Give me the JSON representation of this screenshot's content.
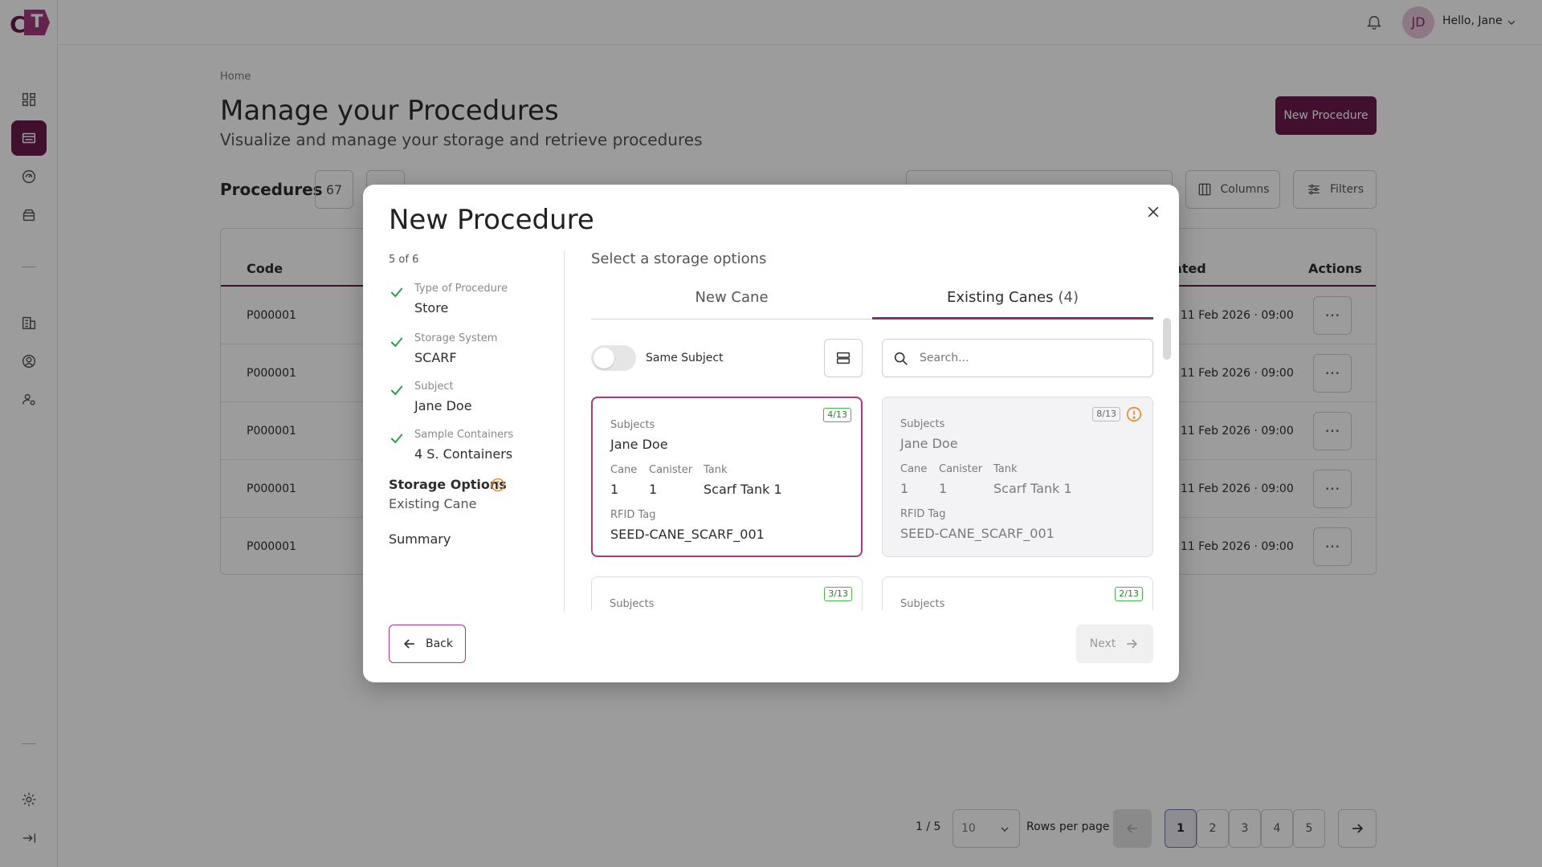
{
  "app": {
    "logo_letters": {
      "c": "C",
      "t": "T"
    }
  },
  "header": {
    "avatar_initials": "JD",
    "greeting": "Hello, Jane"
  },
  "page": {
    "breadcrumb": "Home",
    "title": "Manage your Procedures",
    "subtitle": "Visualize and manage your storage and retrieve procedures",
    "new_button": "New Procedure",
    "procedures_label": "Procedures",
    "procedures_count": "67",
    "columns_button": "Columns",
    "filters_button": "Filters"
  },
  "table": {
    "headers": {
      "code": "Code",
      "created": "ated",
      "actions": "Actions"
    },
    "rows": [
      {
        "code": "P000001",
        "date": ", 11 Feb 2026 · 09:00",
        "action": "···"
      },
      {
        "code": "P000001",
        "date": ", 11 Feb 2026 · 09:00",
        "action": "···"
      },
      {
        "code": "P000001",
        "date": ", 11 Feb 2026 · 09:00",
        "action": "···"
      },
      {
        "code": "P000001",
        "date": ", 11 Feb 2026 · 09:00",
        "action": "···"
      },
      {
        "code": "P000001",
        "date": ", 11 Feb 2026 · 09:00",
        "action": "···"
      }
    ]
  },
  "pagination": {
    "page_indicator": "1 / 5",
    "rows_value": "10",
    "rows_label": "Rows per page",
    "pages": [
      "1",
      "2",
      "3",
      "4",
      "5"
    ],
    "current_page": "1"
  },
  "modal": {
    "title": "New Procedure",
    "step_counter": "5 of 6",
    "steps": [
      {
        "label": "Type of Procedure",
        "value": "Store"
      },
      {
        "label": "Storage System",
        "value": "SCARF"
      },
      {
        "label": "Subject",
        "value": "Jane Doe"
      },
      {
        "label": "Sample Containers",
        "value": "4 S. Containers"
      }
    ],
    "current_step": {
      "label": "Storage Options",
      "value": "Existing Cane"
    },
    "summary_step": "Summary",
    "section_title": "Select a storage options",
    "tabs": {
      "new_cane": "New Cane",
      "existing_canes": "Existing Canes",
      "existing_count": "(4)"
    },
    "toggle_label": "Same Subject",
    "search_placeholder": "Search...",
    "field_labels": {
      "subjects": "Subjects",
      "cane": "Cane",
      "canister": "Canister",
      "tank": "Tank",
      "rfid": "RFID Tag"
    },
    "cards": [
      {
        "badge": "4/13",
        "subject": "Jane Doe",
        "cane": "1",
        "canister": "1",
        "tank": "Scarf Tank 1",
        "rfid": "SEED-CANE_SCARF_001"
      },
      {
        "badge": "8/13",
        "subject": "Jane Doe",
        "cane": "1",
        "canister": "1",
        "tank": "Scarf Tank 1",
        "rfid": "SEED-CANE_SCARF_001"
      },
      {
        "badge": "3/13"
      },
      {
        "badge": "2/13"
      }
    ],
    "back_button": "Back",
    "next_button": "Next"
  },
  "colors": {
    "brand": "#6a1b4d",
    "accent": "#a13a7e",
    "success": "#4caf50",
    "warning": "#e8892c"
  },
  "icons": [
    "dashboard-icon",
    "procedures-icon",
    "gauge-icon",
    "storage-icon",
    "building-icon",
    "user-circle-icon",
    "user-settings-icon",
    "settings-icon",
    "collapse-icon",
    "bell-icon",
    "chevron-down-icon",
    "search-icon",
    "columns-icon",
    "filters-icon",
    "close-icon",
    "check-icon",
    "info-icon",
    "warning-icon",
    "list-view-icon",
    "arrow-left-icon",
    "arrow-right-icon"
  ]
}
